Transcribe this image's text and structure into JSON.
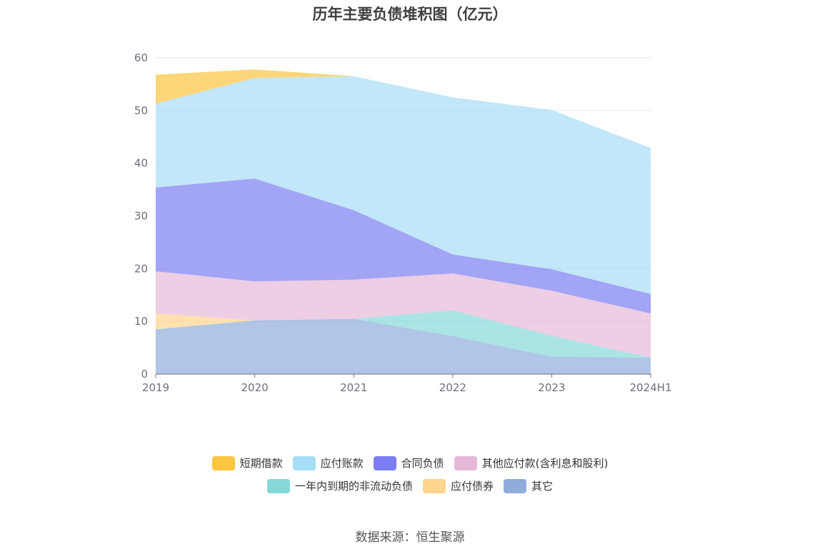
{
  "source_text": "数据来源：恒生聚源",
  "chart_data": {
    "type": "area",
    "stacked": true,
    "title": "历年主要负债堆积图（亿元）",
    "xlabel": "",
    "ylabel": "",
    "x": [
      "2019",
      "2020",
      "2021",
      "2022",
      "2023",
      "2024H1"
    ],
    "ylim": [
      0,
      60
    ],
    "yticks": [
      0,
      10,
      20,
      30,
      40,
      50,
      60
    ],
    "grid": true,
    "legend_position": "bottom",
    "series": [
      {
        "name": "其它",
        "color": "#90acdb",
        "values": [
          8.5,
          10.2,
          10.5,
          7.2,
          3.3,
          3.1
        ]
      },
      {
        "name": "应付债券",
        "color": "#ffd48f",
        "values": [
          3.0,
          0,
          0,
          0,
          0,
          0
        ]
      },
      {
        "name": "一年内到期的非流动负债",
        "color": "#86d8d8",
        "values": [
          0,
          0,
          0,
          4.9,
          4.0,
          0
        ]
      },
      {
        "name": "其他应付款(含利息和股利)",
        "color": "#e6b9d9",
        "values": [
          8.0,
          7.4,
          7.4,
          7.0,
          8.5,
          8.4
        ]
      },
      {
        "name": "合同负债",
        "color": "#7b7ef2",
        "values": [
          15.9,
          19.5,
          13.2,
          3.6,
          4.1,
          3.7
        ]
      },
      {
        "name": "应付账款",
        "color": "#a6ddf7",
        "values": [
          15.9,
          19.1,
          25.4,
          29.8,
          30.2,
          27.7
        ]
      },
      {
        "name": "短期借款",
        "color": "#fcc541",
        "values": [
          5.5,
          1.6,
          0,
          0,
          0,
          0
        ]
      }
    ],
    "legend": [
      [
        "短期借款",
        "应付账款",
        "合同负债",
        "其他应付款(含利息和股利)"
      ],
      [
        "一年内到期的非流动负债",
        "应付债券",
        "其它"
      ]
    ]
  }
}
